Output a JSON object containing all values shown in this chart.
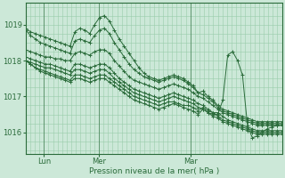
{
  "bg_color": "#cce8d8",
  "line_color": "#2a6b3a",
  "grid_color": "#99ccaa",
  "text_color": "#2a6b3a",
  "xlabel": "Pression niveau de la mer( hPa )",
  "ylim": [
    1015.4,
    1019.6
  ],
  "yticks": [
    1016,
    1017,
    1018,
    1019
  ],
  "xlim": [
    0,
    56
  ],
  "xtick_positions": [
    4,
    16,
    36
  ],
  "xtick_labels": [
    "Lun",
    "Mer",
    "Mar"
  ],
  "vline_positions": [
    4,
    16,
    36
  ],
  "n_points": 53,
  "series": [
    [
      1018.9,
      1018.8,
      1018.75,
      1018.7,
      1018.65,
      1018.6,
      1018.55,
      1018.5,
      1018.45,
      1018.4,
      1018.8,
      1018.9,
      1018.85,
      1018.75,
      1019.0,
      1019.2,
      1019.25,
      1019.1,
      1018.85,
      1018.6,
      1018.4,
      1018.2,
      1018.0,
      1017.8,
      1017.65,
      1017.55,
      1017.5,
      1017.45,
      1017.5,
      1017.55,
      1017.6,
      1017.55,
      1017.5,
      1017.4,
      1017.3,
      1017.1,
      1017.15,
      1017.0,
      1016.9,
      1016.75,
      1016.65,
      1016.6,
      1016.55,
      1016.5,
      1016.45,
      1016.4,
      1016.35,
      1016.3,
      1016.3,
      1016.3,
      1016.3,
      1016.3,
      1016.3
    ],
    [
      1018.85,
      1018.7,
      1018.6,
      1018.5,
      1018.45,
      1018.4,
      1018.35,
      1018.3,
      1018.25,
      1018.2,
      1018.55,
      1018.6,
      1018.55,
      1018.5,
      1018.7,
      1018.85,
      1018.9,
      1018.75,
      1018.5,
      1018.3,
      1018.1,
      1017.9,
      1017.75,
      1017.65,
      1017.55,
      1017.5,
      1017.45,
      1017.4,
      1017.45,
      1017.5,
      1017.55,
      1017.5,
      1017.45,
      1017.35,
      1017.25,
      1017.1,
      1017.05,
      1016.95,
      1016.85,
      1016.7,
      1016.6,
      1016.55,
      1016.5,
      1016.45,
      1016.4,
      1016.35,
      1016.3,
      1016.25,
      1016.25,
      1016.25,
      1016.25,
      1016.25,
      1016.25
    ],
    [
      1018.3,
      1018.25,
      1018.2,
      1018.15,
      1018.1,
      1018.1,
      1018.05,
      1018.05,
      1018.0,
      1018.0,
      1018.2,
      1018.25,
      1018.2,
      1018.15,
      1018.25,
      1018.3,
      1018.3,
      1018.2,
      1018.0,
      1017.85,
      1017.7,
      1017.55,
      1017.45,
      1017.4,
      1017.35,
      1017.3,
      1017.25,
      1017.2,
      1017.25,
      1017.3,
      1017.35,
      1017.3,
      1017.25,
      1017.2,
      1017.1,
      1017.0,
      1016.95,
      1016.85,
      1016.75,
      1016.65,
      1016.55,
      1016.5,
      1016.45,
      1016.4,
      1016.35,
      1016.3,
      1016.25,
      1016.2,
      1016.2,
      1016.2,
      1016.2,
      1016.2,
      1016.2
    ],
    [
      1018.1,
      1018.05,
      1018.0,
      1017.95,
      1017.9,
      1017.9,
      1017.85,
      1017.8,
      1017.75,
      1017.7,
      1017.9,
      1017.9,
      1017.85,
      1017.8,
      1017.85,
      1017.9,
      1017.9,
      1017.8,
      1017.65,
      1017.5,
      1017.4,
      1017.3,
      1017.2,
      1017.15,
      1017.1,
      1017.05,
      1017.0,
      1016.95,
      1017.0,
      1017.05,
      1017.1,
      1017.05,
      1017.0,
      1016.95,
      1016.9,
      1016.8,
      1016.75,
      1016.65,
      1016.55,
      1016.45,
      1016.35,
      1016.3,
      1016.25,
      1016.2,
      1016.15,
      1016.1,
      1016.05,
      1016.0,
      1016.0,
      1016.0,
      1016.0,
      1016.0,
      1016.0
    ],
    [
      1018.0,
      1017.95,
      1017.9,
      1017.85,
      1017.8,
      1017.8,
      1017.75,
      1017.7,
      1017.65,
      1017.6,
      1017.75,
      1017.75,
      1017.7,
      1017.65,
      1017.7,
      1017.75,
      1017.75,
      1017.65,
      1017.5,
      1017.4,
      1017.3,
      1017.2,
      1017.1,
      1017.05,
      1017.0,
      1016.95,
      1016.9,
      1016.85,
      1016.9,
      1016.95,
      1017.0,
      1016.95,
      1016.9,
      1016.85,
      1016.8,
      1016.7,
      1016.65,
      1016.55,
      1016.45,
      1016.4,
      1016.3,
      1016.25,
      1016.2,
      1016.15,
      1016.1,
      1016.05,
      1016.0,
      1015.95,
      1015.95,
      1015.95,
      1015.95,
      1015.95,
      1015.95
    ],
    [
      1018.0,
      1017.9,
      1017.8,
      1017.75,
      1017.7,
      1017.65,
      1017.6,
      1017.55,
      1017.5,
      1017.45,
      1017.6,
      1017.6,
      1017.55,
      1017.5,
      1017.55,
      1017.6,
      1017.6,
      1017.5,
      1017.4,
      1017.3,
      1017.2,
      1017.1,
      1017.0,
      1016.95,
      1016.9,
      1016.85,
      1016.8,
      1016.75,
      1016.8,
      1016.85,
      1016.85,
      1016.8,
      1016.75,
      1016.75,
      1016.7,
      1016.6,
      1016.7,
      1016.6,
      1016.55,
      1016.55,
      1016.45,
      1016.35,
      1016.3,
      1016.25,
      1016.2,
      1016.15,
      1016.1,
      1016.05,
      1016.05,
      1016.05,
      1016.05,
      1016.05,
      1016.05
    ],
    [
      1018.0,
      1017.9,
      1017.8,
      1017.7,
      1017.65,
      1017.6,
      1017.55,
      1017.5,
      1017.45,
      1017.4,
      1017.5,
      1017.5,
      1017.45,
      1017.4,
      1017.45,
      1017.5,
      1017.5,
      1017.4,
      1017.3,
      1017.2,
      1017.1,
      1017.0,
      1016.9,
      1016.85,
      1016.8,
      1016.75,
      1016.7,
      1016.65,
      1016.7,
      1016.75,
      1016.8,
      1016.75,
      1016.7,
      1016.65,
      1016.6,
      1016.5,
      1016.65,
      1016.55,
      1016.5,
      1016.5,
      1016.9,
      1018.15,
      1018.25,
      1018.0,
      1017.6,
      1016.2,
      1015.85,
      1015.9,
      1016.0,
      1016.1,
      1016.15,
      1016.2,
      1016.2
    ]
  ]
}
